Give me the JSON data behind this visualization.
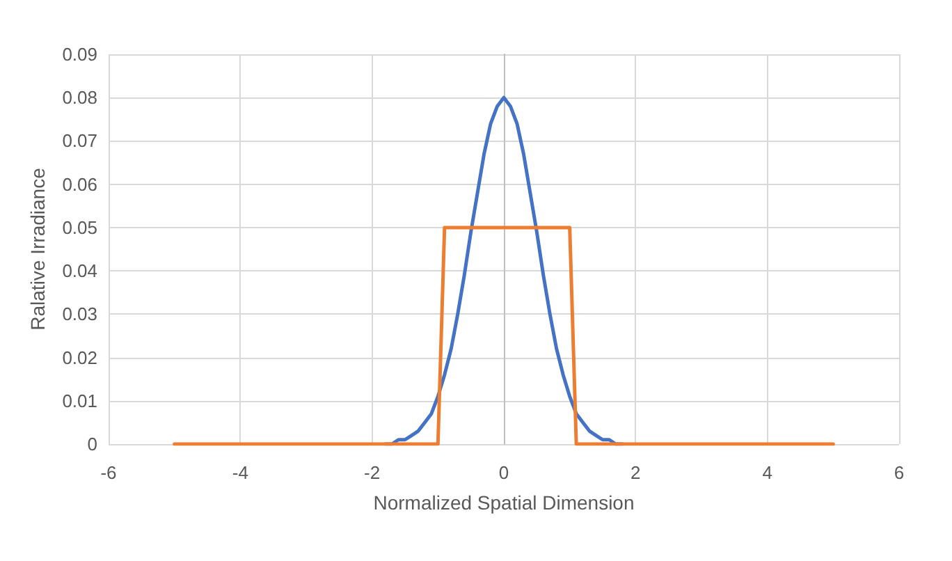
{
  "chart_data": {
    "type": "line",
    "xlabel": "Normalized Spatial Dimension",
    "ylabel": "Ralative Irradiance",
    "xlim": [
      -6,
      6
    ],
    "xticks": [
      -6,
      -4,
      -2,
      0,
      2,
      4,
      6
    ],
    "ylim": [
      0,
      0.09
    ],
    "yticks": [
      0,
      0.01,
      0.02,
      0.03,
      0.04,
      0.05,
      0.06,
      0.07,
      0.08,
      0.09
    ],
    "grid": true,
    "marker": "none",
    "line_style": "solid",
    "series": [
      {
        "color": "#4472c4",
        "x": [
          -1.8,
          -1.7,
          -1.6,
          -1.5,
          -1.4,
          -1.3,
          -1.2,
          -1.1,
          -1.0,
          -0.9,
          -0.8,
          -0.7,
          -0.6,
          -0.5,
          -0.4,
          -0.3,
          -0.2,
          -0.1,
          0,
          0.1,
          0.2,
          0.3,
          0.4,
          0.5,
          0.6,
          0.7,
          0.8,
          0.9,
          1.0,
          1.1,
          1.2,
          1.3,
          1.4,
          1.5,
          1.6,
          1.7,
          1.8
        ],
        "values": [
          0.0,
          0.0,
          0.001,
          0.001,
          0.002,
          0.003,
          0.005,
          0.007,
          0.011,
          0.016,
          0.022,
          0.03,
          0.039,
          0.049,
          0.058,
          0.067,
          0.074,
          0.078,
          0.08,
          0.078,
          0.074,
          0.067,
          0.058,
          0.049,
          0.039,
          0.03,
          0.022,
          0.016,
          0.011,
          0.007,
          0.005,
          0.003,
          0.002,
          0.001,
          0.001,
          0.0,
          0.0
        ]
      },
      {
        "color": "#ed7d31",
        "x": [
          -5,
          -1,
          -0.9,
          1,
          1.1,
          5
        ],
        "values": [
          0,
          0,
          0.05,
          0.05,
          0,
          0
        ]
      }
    ]
  }
}
